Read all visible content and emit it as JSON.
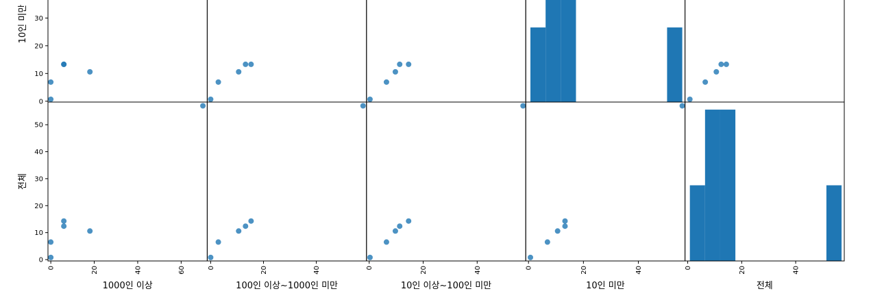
{
  "chart_data": {
    "type": "scatter_matrix",
    "color": "#1f77b4",
    "variables": [
      {
        "name": "1000인 이상",
        "values": [
          0,
          0,
          18,
          6,
          6,
          70
        ],
        "xlim": [
          -1.3,
          72
        ],
        "xticks": [
          0,
          20,
          40,
          60
        ]
      },
      {
        "name": "100인 이상~1000인 미만",
        "values": [
          0,
          2.9,
          10.6,
          13.2,
          15.3,
          57.7
        ],
        "xlim": [
          -1.3,
          59
        ],
        "xticks": [
          0,
          20,
          40
        ]
      },
      {
        "name": "10인 이상~100인 미만",
        "values": [
          0.3,
          6.4,
          9.7,
          11.3,
          14.6,
          57
        ],
        "xlim": [
          -1,
          58
        ],
        "xticks": [
          0,
          20,
          40
        ]
      },
      {
        "name": "10인 미만",
        "values": [
          0.7,
          6.9,
          10.6,
          13.3,
          13.3,
          56
        ],
        "xlim": [
          -1,
          57
        ],
        "xticks": [
          0,
          20,
          40
        ]
      },
      {
        "name": "전체",
        "values": [
          0.8,
          6.5,
          10.6,
          12.4,
          14.3,
          57
        ],
        "xlim": [
          -1,
          58
        ],
        "xticks": [
          0,
          20,
          40
        ]
      }
    ],
    "rows": [
      {
        "variable": 3,
        "ylim": [
          -0.3,
          57
        ],
        "yticks": [
          0,
          10,
          20,
          30
        ],
        "hist": {
          "bins": [
            0.7,
            6.23,
            11.76,
            17.29,
            22.82,
            28.35,
            33.88,
            39.41,
            44.94,
            50.47,
            56
          ],
          "counts": [
            1,
            2,
            2,
            0,
            0,
            0,
            0,
            0,
            0,
            1
          ],
          "ylim": [
            0,
            2.13
          ]
        }
      },
      {
        "variable": 4,
        "ylim": [
          -0.5,
          58.4
        ],
        "yticks": [
          0,
          10,
          20,
          30,
          40,
          50
        ],
        "hist": {
          "bins": [
            0.8,
            6.42,
            12.04,
            17.66,
            23.28,
            28.9,
            34.52,
            40.14,
            45.76,
            51.38,
            57
          ],
          "counts": [
            1,
            2,
            2,
            0,
            0,
            0,
            0,
            0,
            0,
            1
          ],
          "ylim": [
            0,
            2.1
          ]
        }
      }
    ]
  }
}
